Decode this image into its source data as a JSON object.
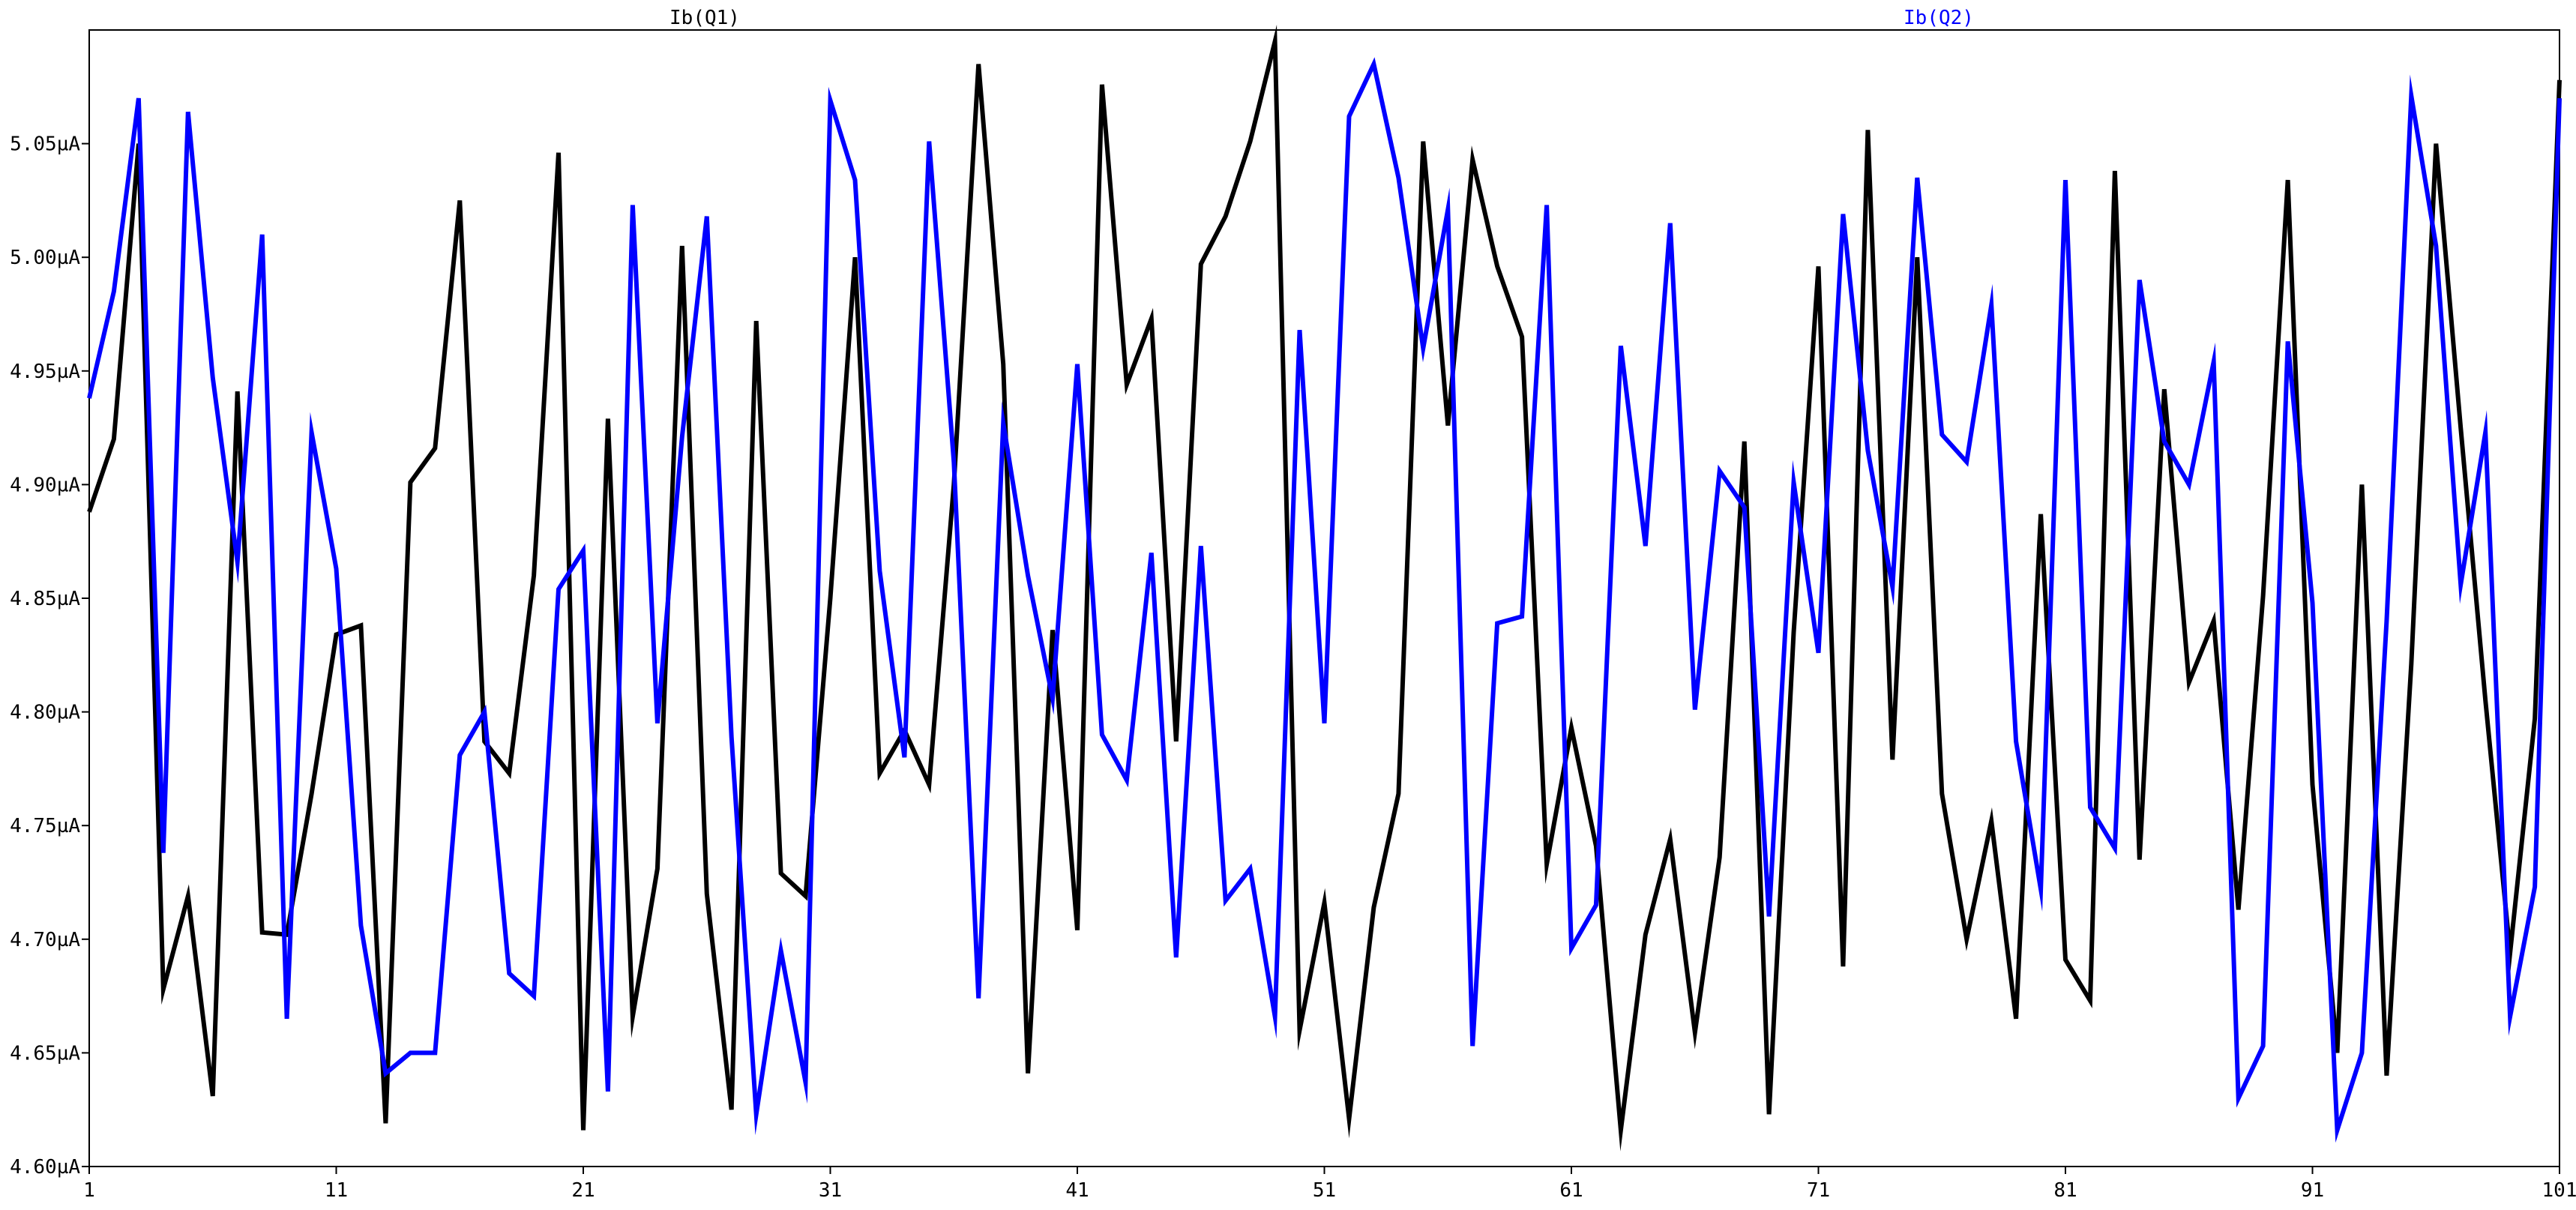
{
  "chart_data": {
    "type": "line",
    "x": [
      1,
      2,
      3,
      4,
      5,
      6,
      7,
      8,
      9,
      10,
      11,
      12,
      13,
      14,
      15,
      16,
      17,
      18,
      19,
      20,
      21,
      22,
      23,
      24,
      25,
      26,
      27,
      28,
      29,
      30,
      31,
      32,
      33,
      34,
      35,
      36,
      37,
      38,
      39,
      40,
      41,
      42,
      43,
      44,
      45,
      46,
      47,
      48,
      49,
      50,
      51,
      52,
      53,
      54,
      55,
      56,
      57,
      58,
      59,
      60,
      61,
      62,
      63,
      64,
      65,
      66,
      67,
      68,
      69,
      70,
      71,
      72,
      73,
      74,
      75,
      76,
      77,
      78,
      79,
      80,
      81,
      82,
      83,
      84,
      85,
      86,
      87,
      88,
      89,
      90,
      91,
      92,
      93,
      94,
      95,
      96,
      97,
      98,
      99,
      100,
      101
    ],
    "series": [
      {
        "name": "Ib(Q1)",
        "color": "#000000",
        "values": [
          4.888,
          4.92,
          5.05,
          4.678,
          4.719,
          4.631,
          4.941,
          4.703,
          4.702,
          4.764,
          4.834,
          4.838,
          4.619,
          4.901,
          4.916,
          5.025,
          4.787,
          4.773,
          4.86,
          5.046,
          4.616,
          4.929,
          4.666,
          4.731,
          5.005,
          4.72,
          4.625,
          4.972,
          4.729,
          4.719,
          4.85,
          5.0,
          4.773,
          4.792,
          4.768,
          4.9,
          5.085,
          4.953,
          4.641,
          4.836,
          4.704,
          5.076,
          4.944,
          4.973,
          4.787,
          4.997,
          5.018,
          5.051,
          5.095,
          4.66,
          4.716,
          4.621,
          4.714,
          4.764,
          5.051,
          4.926,
          5.043,
          4.996,
          4.965,
          4.733,
          4.793,
          4.741,
          4.616,
          4.702,
          4.744,
          4.659,
          4.736,
          4.919,
          4.623,
          4.835,
          4.996,
          4.688,
          5.056,
          4.779,
          5.0,
          4.764,
          4.7,
          4.752,
          4.665,
          4.887,
          4.691,
          4.673,
          5.038,
          4.735,
          4.942,
          4.813,
          4.84,
          4.713,
          4.851,
          5.034,
          4.768,
          4.65,
          4.9,
          4.64,
          4.821,
          5.05,
          4.925,
          4.805,
          4.694,
          4.797,
          5.078
        ]
      },
      {
        "name": "Ib(Q2)",
        "color": "#0000ff",
        "values": [
          4.938,
          4.985,
          5.07,
          4.738,
          5.064,
          4.947,
          4.866,
          5.01,
          4.665,
          4.923,
          4.863,
          4.706,
          4.641,
          4.65,
          4.65,
          4.781,
          4.8,
          4.685,
          4.675,
          4.854,
          4.871,
          4.633,
          5.023,
          4.795,
          4.921,
          5.018,
          4.789,
          4.623,
          4.695,
          4.637,
          5.069,
          5.034,
          4.862,
          4.78,
          5.051,
          4.91,
          4.674,
          4.927,
          4.86,
          4.806,
          4.953,
          4.79,
          4.77,
          4.87,
          4.692,
          4.873,
          4.717,
          4.731,
          4.666,
          4.968,
          4.795,
          5.062,
          5.085,
          5.035,
          4.96,
          5.021,
          4.653,
          4.839,
          4.842,
          5.023,
          4.696,
          4.715,
          4.961,
          4.873,
          5.015,
          4.801,
          4.906,
          4.89,
          4.71,
          4.901,
          4.826,
          5.019,
          4.915,
          4.855,
          5.035,
          4.922,
          4.91,
          4.979,
          4.787,
          4.722,
          5.034,
          4.758,
          4.74,
          4.99,
          4.919,
          4.9,
          4.954,
          4.63,
          4.653,
          4.963,
          4.848,
          4.616,
          4.65,
          4.84,
          5.071,
          5.005,
          4.856,
          4.923,
          4.666,
          4.723,
          5.07
        ]
      }
    ],
    "xlim": [
      1,
      101
    ],
    "ylim": [
      4.6,
      5.1
    ],
    "xticks": [
      "1",
      "11",
      "21",
      "31",
      "41",
      "51",
      "61",
      "71",
      "81",
      "91",
      "101"
    ],
    "yticks": [
      "4.60µA",
      "4.65µA",
      "4.70µA",
      "4.75µA",
      "4.80µA",
      "4.85µA",
      "4.90µA",
      "4.95µA",
      "5.00µA",
      "5.05µA"
    ],
    "ytick_values": [
      4.6,
      4.65,
      4.7,
      4.75,
      4.8,
      4.85,
      4.9,
      4.95,
      5.0,
      5.05
    ],
    "grid": false,
    "legend_position": "top"
  }
}
